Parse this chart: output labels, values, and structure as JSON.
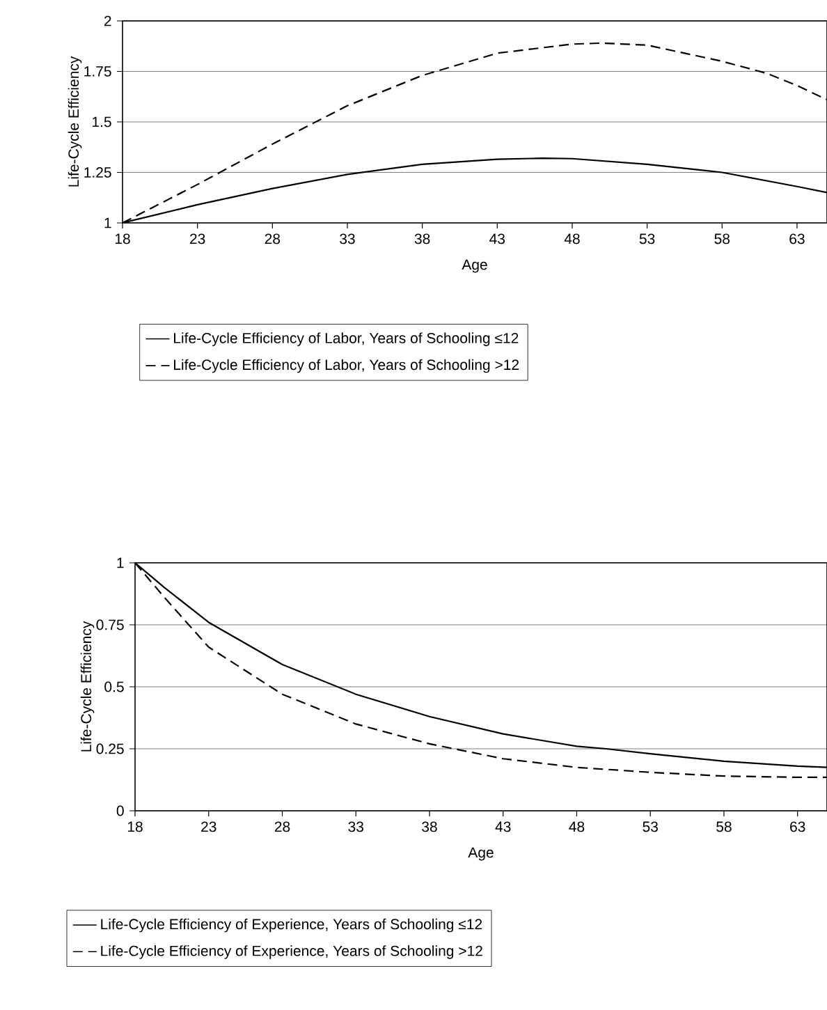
{
  "chart_data": [
    {
      "type": "line",
      "xlabel": "Age",
      "ylabel": "Life-Cycle Efficiency",
      "xlim": [
        18,
        65
      ],
      "xticks": [
        18,
        23,
        28,
        33,
        38,
        43,
        48,
        53,
        58,
        63
      ],
      "ylim": [
        1,
        2
      ],
      "yticks": [
        1,
        1.25,
        1.5,
        1.75,
        2
      ],
      "grid": "y",
      "legend": "bottom",
      "series": [
        {
          "name": "Life-Cycle Efficiency of Labor, Years of Schooling ≤12",
          "color": "#000000",
          "line_style": "solid",
          "x": [
            18,
            23,
            28,
            33,
            38,
            43,
            46,
            48,
            53,
            58,
            63,
            65
          ],
          "values": [
            1,
            1.09,
            1.17,
            1.24,
            1.29,
            1.315,
            1.32,
            1.318,
            1.29,
            1.25,
            1.18,
            1.15
          ]
        },
        {
          "name": "Life-Cycle Efficiency of Labor, Years of Schooling >12",
          "color": "#000000",
          "line_style": "dashed",
          "x": [
            18,
            23,
            28,
            33,
            38,
            43,
            48,
            50,
            53,
            58,
            61,
            63,
            65
          ],
          "values": [
            1,
            1.19,
            1.39,
            1.58,
            1.73,
            1.84,
            1.885,
            1.89,
            1.88,
            1.8,
            1.74,
            1.68,
            1.61
          ]
        }
      ]
    },
    {
      "type": "line",
      "xlabel": "Age",
      "ylabel": "Life-Cycle Efficiency",
      "xlim": [
        18,
        65
      ],
      "xticks": [
        18,
        23,
        28,
        33,
        38,
        43,
        48,
        53,
        58,
        63
      ],
      "ylim": [
        0,
        1
      ],
      "yticks": [
        0,
        0.25,
        0.5,
        0.75,
        1
      ],
      "grid": "y",
      "legend": "bottom",
      "series": [
        {
          "name": "Life-Cycle Efficiency of Experience, Years of Schooling ≤12",
          "color": "#000000",
          "line_style": "solid",
          "x": [
            18,
            20,
            23,
            28,
            33,
            38,
            43,
            48,
            50,
            53,
            58,
            63,
            65
          ],
          "values": [
            1,
            0.9,
            0.76,
            0.59,
            0.47,
            0.38,
            0.31,
            0.26,
            0.25,
            0.23,
            0.2,
            0.18,
            0.175
          ]
        },
        {
          "name": "Life-Cycle Efficiency of Experience, Years of Schooling >12",
          "color": "#000000",
          "line_style": "dashed",
          "x": [
            18,
            20,
            23,
            28,
            33,
            38,
            43,
            48,
            53,
            58,
            63,
            65
          ],
          "values": [
            1,
            0.86,
            0.66,
            0.47,
            0.35,
            0.27,
            0.21,
            0.175,
            0.155,
            0.14,
            0.135,
            0.135
          ]
        }
      ]
    }
  ]
}
